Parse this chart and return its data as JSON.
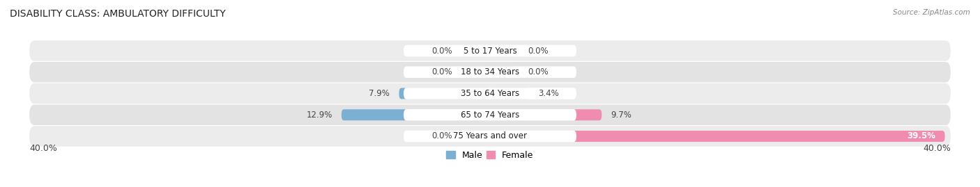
{
  "title": "DISABILITY CLASS: AMBULATORY DIFFICULTY",
  "source": "Source: ZipAtlas.com",
  "categories": [
    "5 to 17 Years",
    "18 to 34 Years",
    "35 to 64 Years",
    "65 to 74 Years",
    "75 Years and over"
  ],
  "male_values": [
    0.0,
    0.0,
    7.9,
    12.9,
    0.0
  ],
  "female_values": [
    0.0,
    0.0,
    3.4,
    9.7,
    39.5
  ],
  "max_val": 40.0,
  "male_color": "#7bafd4",
  "female_color": "#f08cb0",
  "male_color_light": "#aecde4",
  "female_color_light": "#f6bccf",
  "row_bg_even": "#ececec",
  "row_bg_odd": "#e3e3e3",
  "title_fontsize": 10,
  "label_fontsize": 8.5,
  "value_fontsize": 8.5,
  "axis_label_fontsize": 9,
  "bar_height": 0.52,
  "stub_size": 2.5,
  "fig_bg": "#ffffff",
  "label_bg": "#ffffff"
}
